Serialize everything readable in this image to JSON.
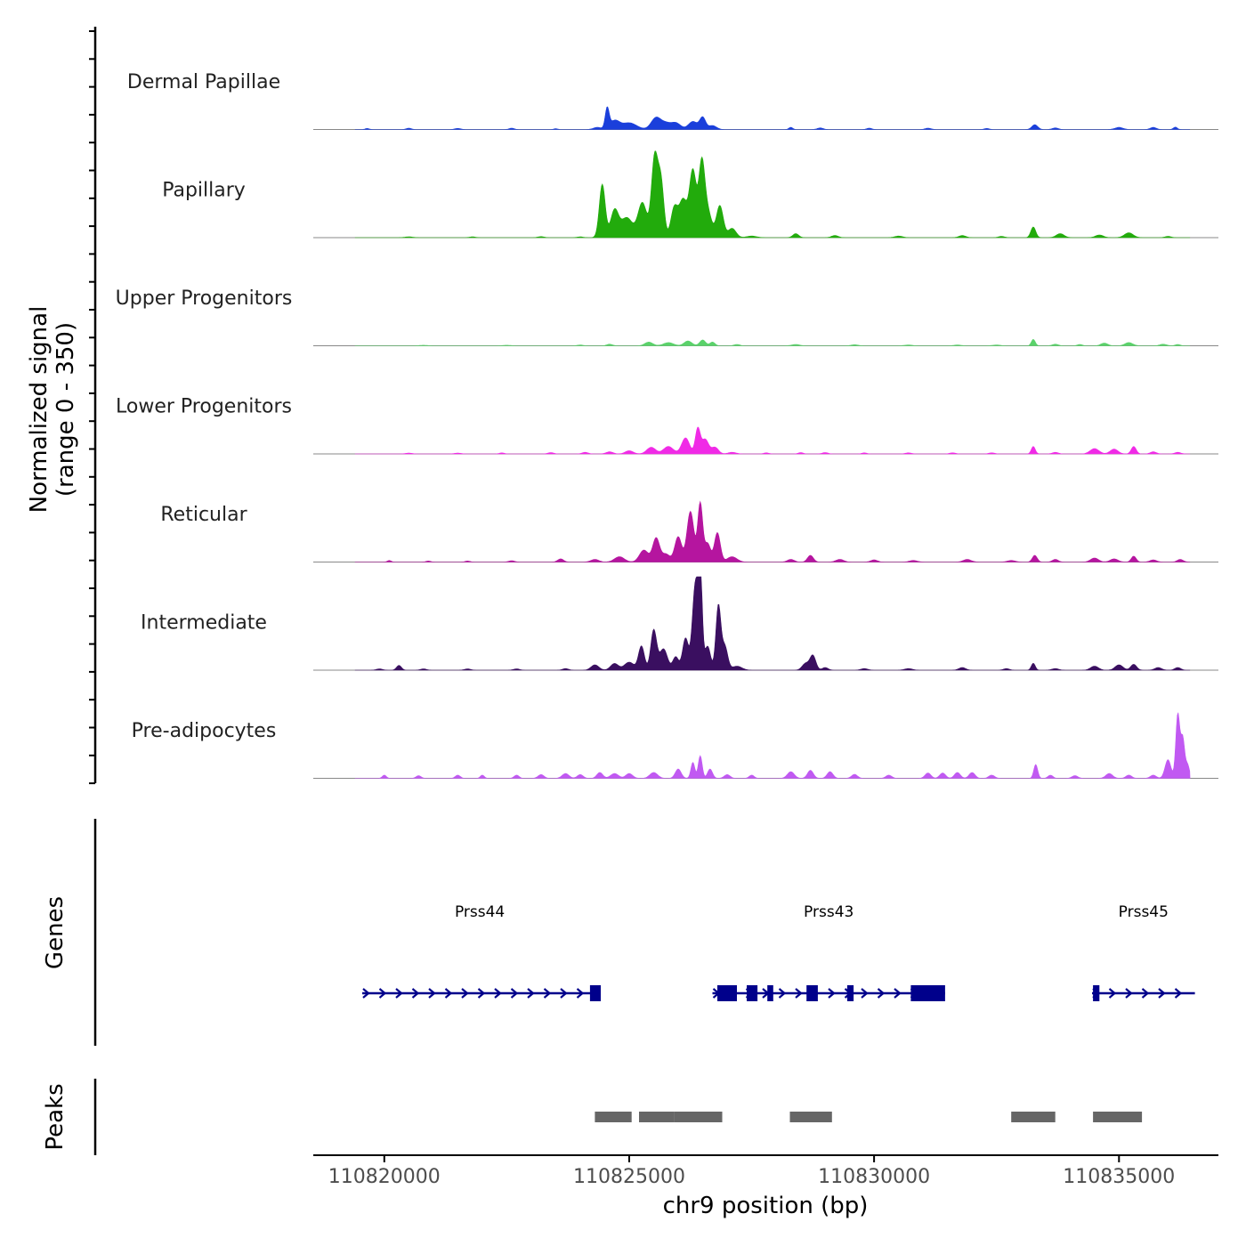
{
  "chart_data": {
    "type": "area",
    "description_title": "",
    "ylabel_line1": "Normalized signal",
    "ylabel_line2": "(range 0 - 350)",
    "ylim": [
      0,
      350
    ],
    "xlabel": "chr9 position (bp)",
    "xlim": [
      110818550,
      110837030
    ],
    "x_ticks": [
      110820000,
      110825000,
      110830000,
      110835000
    ],
    "x_tick_labels": [
      "110820000",
      "110825000",
      "110830000",
      "110835000"
    ],
    "genes_label": "Genes",
    "peaks_label": "Peaks",
    "series": [
      {
        "name": "Dermal Papillae",
        "color": "#1a3fdb",
        "baseline": [
          110819400,
          110836450
        ],
        "bumps": [
          [
            110819650,
            40,
            4
          ],
          [
            110820500,
            50,
            5
          ],
          [
            110821500,
            60,
            4
          ],
          [
            110822600,
            50,
            5
          ],
          [
            110823500,
            40,
            3
          ],
          [
            110824350,
            80,
            8
          ],
          [
            110824550,
            40,
            75
          ],
          [
            110824700,
            100,
            32
          ],
          [
            110825000,
            150,
            25
          ],
          [
            110825550,
            100,
            45
          ],
          [
            110825750,
            90,
            20
          ],
          [
            110825950,
            100,
            25
          ],
          [
            110826300,
            90,
            30
          ],
          [
            110826500,
            60,
            45
          ],
          [
            110826700,
            80,
            15
          ],
          [
            110828300,
            40,
            8
          ],
          [
            110828900,
            60,
            6
          ],
          [
            110829900,
            50,
            5
          ],
          [
            110831100,
            60,
            5
          ],
          [
            110832300,
            50,
            4
          ],
          [
            110833280,
            60,
            18
          ],
          [
            110833700,
            60,
            6
          ],
          [
            110835000,
            80,
            8
          ],
          [
            110835700,
            60,
            8
          ],
          [
            110836150,
            40,
            9
          ]
        ]
      },
      {
        "name": "Papillary",
        "color": "#22ab0c",
        "baseline": [
          110819400,
          110836450
        ],
        "bumps": [
          [
            110820500,
            80,
            3
          ],
          [
            110821800,
            60,
            3
          ],
          [
            110823200,
            60,
            4
          ],
          [
            110824000,
            60,
            3
          ],
          [
            110824450,
            60,
            200
          ],
          [
            110824700,
            80,
            100
          ],
          [
            110824950,
            120,
            75
          ],
          [
            110825270,
            90,
            130
          ],
          [
            110825520,
            65,
            300
          ],
          [
            110825650,
            60,
            200
          ],
          [
            110825920,
            70,
            110
          ],
          [
            110826100,
            80,
            140
          ],
          [
            110826300,
            70,
            250
          ],
          [
            110826480,
            60,
            260
          ],
          [
            110826600,
            80,
            100
          ],
          [
            110826850,
            70,
            120
          ],
          [
            110827100,
            80,
            35
          ],
          [
            110827500,
            100,
            6
          ],
          [
            110828400,
            60,
            15
          ],
          [
            110829200,
            70,
            8
          ],
          [
            110830500,
            80,
            6
          ],
          [
            110831800,
            70,
            8
          ],
          [
            110832600,
            60,
            5
          ],
          [
            110833250,
            50,
            40
          ],
          [
            110833800,
            80,
            15
          ],
          [
            110834600,
            80,
            10
          ],
          [
            110835200,
            90,
            18
          ],
          [
            110836000,
            60,
            5
          ]
        ]
      },
      {
        "name": "Upper Progenitors",
        "color": "#5ad26a",
        "baseline": [
          110819400,
          110836450
        ],
        "bumps": [
          [
            110820800,
            80,
            2
          ],
          [
            110822500,
            80,
            2
          ],
          [
            110824000,
            60,
            3
          ],
          [
            110824600,
            60,
            6
          ],
          [
            110825400,
            80,
            14
          ],
          [
            110825800,
            100,
            12
          ],
          [
            110826200,
            80,
            18
          ],
          [
            110826500,
            60,
            22
          ],
          [
            110826700,
            50,
            14
          ],
          [
            110827200,
            60,
            5
          ],
          [
            110828400,
            80,
            5
          ],
          [
            110829600,
            70,
            4
          ],
          [
            110830700,
            80,
            3
          ],
          [
            110831700,
            70,
            3
          ],
          [
            110832500,
            80,
            3
          ],
          [
            110833250,
            40,
            24
          ],
          [
            110833700,
            60,
            6
          ],
          [
            110834200,
            50,
            5
          ],
          [
            110834700,
            70,
            10
          ],
          [
            110835200,
            80,
            12
          ],
          [
            110835900,
            70,
            6
          ],
          [
            110836200,
            50,
            5
          ]
        ]
      },
      {
        "name": "Lower Progenitors",
        "color": "#f02ae6",
        "baseline": [
          110819400,
          110836450
        ],
        "bumps": [
          [
            110820500,
            70,
            3
          ],
          [
            110821500,
            70,
            3
          ],
          [
            110822400,
            50,
            4
          ],
          [
            110823400,
            60,
            5
          ],
          [
            110824100,
            60,
            6
          ],
          [
            110824600,
            70,
            8
          ],
          [
            110825000,
            80,
            12
          ],
          [
            110825450,
            90,
            25
          ],
          [
            110825800,
            100,
            28
          ],
          [
            110826150,
            80,
            60
          ],
          [
            110826400,
            50,
            95
          ],
          [
            110826550,
            70,
            55
          ],
          [
            110826750,
            70,
            25
          ],
          [
            110827100,
            80,
            6
          ],
          [
            110827800,
            50,
            4
          ],
          [
            110828500,
            50,
            5
          ],
          [
            110829000,
            60,
            5
          ],
          [
            110829800,
            50,
            4
          ],
          [
            110830700,
            60,
            4
          ],
          [
            110831600,
            60,
            4
          ],
          [
            110832400,
            60,
            4
          ],
          [
            110833250,
            40,
            28
          ],
          [
            110833700,
            60,
            6
          ],
          [
            110834500,
            90,
            20
          ],
          [
            110834900,
            80,
            18
          ],
          [
            110835300,
            50,
            28
          ],
          [
            110835700,
            60,
            8
          ],
          [
            110836200,
            60,
            6
          ]
        ]
      },
      {
        "name": "Reticular",
        "color": "#b5159f",
        "baseline": [
          110819400,
          110836450
        ],
        "bumps": [
          [
            110820100,
            40,
            6
          ],
          [
            110820900,
            50,
            4
          ],
          [
            110821700,
            50,
            4
          ],
          [
            110822600,
            60,
            5
          ],
          [
            110823600,
            60,
            12
          ],
          [
            110824300,
            80,
            10
          ],
          [
            110824800,
            100,
            20
          ],
          [
            110825300,
            90,
            45
          ],
          [
            110825550,
            70,
            90
          ],
          [
            110825750,
            80,
            30
          ],
          [
            110826000,
            70,
            95
          ],
          [
            110826250,
            70,
            190
          ],
          [
            110826450,
            50,
            220
          ],
          [
            110826600,
            60,
            70
          ],
          [
            110826800,
            60,
            110
          ],
          [
            110827100,
            100,
            20
          ],
          [
            110828300,
            70,
            10
          ],
          [
            110828700,
            60,
            25
          ],
          [
            110829300,
            80,
            10
          ],
          [
            110830000,
            70,
            8
          ],
          [
            110830800,
            80,
            6
          ],
          [
            110831900,
            80,
            10
          ],
          [
            110832800,
            80,
            6
          ],
          [
            110833280,
            50,
            25
          ],
          [
            110833700,
            60,
            10
          ],
          [
            110834500,
            80,
            15
          ],
          [
            110834900,
            80,
            12
          ],
          [
            110835300,
            50,
            22
          ],
          [
            110835700,
            70,
            8
          ],
          [
            110836250,
            60,
            10
          ]
        ]
      },
      {
        "name": "Intermediate",
        "color": "#3a0f60",
        "baseline": [
          110819400,
          110836450
        ],
        "bumps": [
          [
            110819900,
            60,
            5
          ],
          [
            110820300,
            50,
            18
          ],
          [
            110820800,
            60,
            5
          ],
          [
            110821700,
            60,
            5
          ],
          [
            110822700,
            60,
            5
          ],
          [
            110823700,
            60,
            6
          ],
          [
            110824300,
            80,
            20
          ],
          [
            110824700,
            80,
            25
          ],
          [
            110825000,
            100,
            30
          ],
          [
            110825250,
            60,
            90
          ],
          [
            110825500,
            60,
            150
          ],
          [
            110825700,
            80,
            80
          ],
          [
            110825950,
            60,
            50
          ],
          [
            110826150,
            60,
            120
          ],
          [
            110826350,
            60,
            320
          ],
          [
            110826450,
            40,
            360
          ],
          [
            110826600,
            60,
            90
          ],
          [
            110826820,
            50,
            240
          ],
          [
            110826950,
            60,
            90
          ],
          [
            110827200,
            100,
            15
          ],
          [
            110828600,
            70,
            25
          ],
          [
            110828750,
            60,
            55
          ],
          [
            110829000,
            60,
            10
          ],
          [
            110829800,
            70,
            6
          ],
          [
            110830700,
            80,
            6
          ],
          [
            110831800,
            70,
            10
          ],
          [
            110832700,
            60,
            6
          ],
          [
            110833250,
            40,
            26
          ],
          [
            110833700,
            70,
            6
          ],
          [
            110834500,
            80,
            15
          ],
          [
            110835000,
            80,
            20
          ],
          [
            110835300,
            60,
            22
          ],
          [
            110835800,
            70,
            10
          ],
          [
            110836200,
            60,
            10
          ]
        ]
      },
      {
        "name": "Pre-adipocytes",
        "color": "#c159f2",
        "baseline": [
          110819400,
          110836450
        ],
        "bumps": [
          [
            110820000,
            40,
            12
          ],
          [
            110820700,
            50,
            10
          ],
          [
            110821500,
            50,
            12
          ],
          [
            110822000,
            40,
            12
          ],
          [
            110822700,
            50,
            12
          ],
          [
            110823200,
            60,
            14
          ],
          [
            110823700,
            70,
            18
          ],
          [
            110824000,
            60,
            14
          ],
          [
            110824400,
            60,
            22
          ],
          [
            110824700,
            80,
            18
          ],
          [
            110825000,
            70,
            18
          ],
          [
            110825500,
            80,
            22
          ],
          [
            110826000,
            60,
            35
          ],
          [
            110826300,
            40,
            60
          ],
          [
            110826450,
            40,
            85
          ],
          [
            110826650,
            50,
            35
          ],
          [
            110827000,
            60,
            14
          ],
          [
            110827500,
            50,
            12
          ],
          [
            110828300,
            70,
            25
          ],
          [
            110828700,
            60,
            30
          ],
          [
            110829100,
            60,
            25
          ],
          [
            110829600,
            60,
            15
          ],
          [
            110830300,
            60,
            12
          ],
          [
            110831100,
            60,
            20
          ],
          [
            110831400,
            60,
            20
          ],
          [
            110831700,
            60,
            22
          ],
          [
            110832000,
            60,
            22
          ],
          [
            110832400,
            60,
            12
          ],
          [
            110833300,
            40,
            52
          ],
          [
            110833600,
            50,
            12
          ],
          [
            110834100,
            60,
            10
          ],
          [
            110834800,
            70,
            18
          ],
          [
            110835200,
            60,
            12
          ],
          [
            110835700,
            60,
            12
          ],
          [
            110836000,
            60,
            70
          ],
          [
            110836200,
            40,
            240
          ],
          [
            110836300,
            40,
            150
          ],
          [
            110836400,
            40,
            50
          ]
        ]
      }
    ],
    "genes": [
      {
        "name": "Prss44",
        "start": 110819550,
        "end": 110824350,
        "exons": [
          [
            110824200,
            110824420
          ]
        ]
      },
      {
        "name": "Prss43",
        "start": 110826700,
        "end": 110831450,
        "exons": [
          [
            110826800,
            110827200
          ],
          [
            110827400,
            110827620
          ],
          [
            110827820,
            110827940
          ],
          [
            110828620,
            110828850
          ],
          [
            110829450,
            110829580
          ],
          [
            110830750,
            110831450
          ]
        ]
      },
      {
        "name": "Prss45",
        "start": 110834450,
        "end": 110836550,
        "exons": [
          [
            110834470,
            110834600
          ]
        ]
      }
    ],
    "peaks": [
      [
        110824300,
        110825050
      ],
      [
        110825200,
        110825920
      ],
      [
        110825920,
        110826900
      ],
      [
        110828280,
        110829140
      ],
      [
        110832800,
        110833700
      ],
      [
        110834470,
        110835470
      ]
    ]
  },
  "colors": {
    "gene": "#00008b",
    "peak": "#666666",
    "axis": "#000000",
    "baseline": "#888888"
  }
}
